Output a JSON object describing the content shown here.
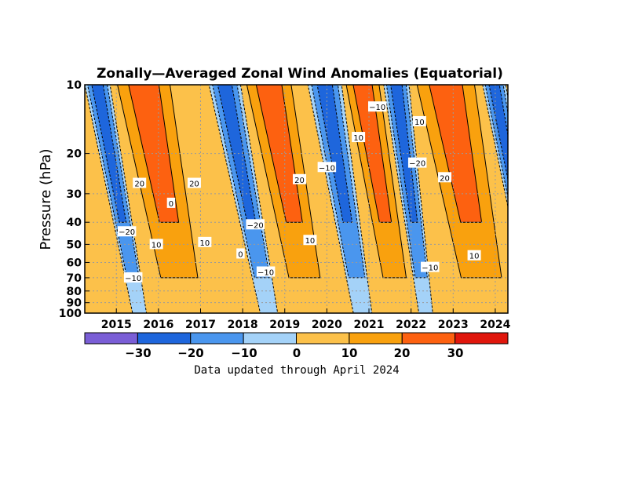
{
  "chart_data": {
    "type": "heatmap",
    "title": "Zonally—Averaged Zonal Wind Anomalies (Equatorial)",
    "xlabel": "",
    "ylabel": "Pressure (hPa)",
    "y_scale": "log",
    "y_reversed": true,
    "ylim": [
      100,
      10
    ],
    "xlim": [
      2014.25,
      2024.3
    ],
    "x_ticks": [
      {
        "label": "2015",
        "value": 2015.0
      },
      {
        "label": "2016",
        "value": 2016.0
      },
      {
        "label": "2017",
        "value": 2017.0
      },
      {
        "label": "2018",
        "value": 2018.0
      },
      {
        "label": "2019",
        "value": 2019.0
      },
      {
        "label": "2020",
        "value": 2020.0
      },
      {
        "label": "2021",
        "value": 2021.0
      },
      {
        "label": "2022",
        "value": 2022.0
      },
      {
        "label": "2023",
        "value": 2023.0
      },
      {
        "label": "2024",
        "value": 2024.0
      }
    ],
    "y_ticks": [
      {
        "label": "10",
        "value": 10
      },
      {
        "label": "20",
        "value": 20
      },
      {
        "label": "30",
        "value": 30
      },
      {
        "label": "40",
        "value": 40
      },
      {
        "label": "50",
        "value": 50
      },
      {
        "label": "60",
        "value": 60
      },
      {
        "label": "70",
        "value": 70
      },
      {
        "label": "80",
        "value": 80
      },
      {
        "label": "90",
        "value": 90
      },
      {
        "label": "100",
        "value": 100
      }
    ],
    "grid": true,
    "colorbar": {
      "levels": [
        -40,
        -30,
        -20,
        -10,
        0,
        10,
        20,
        30,
        40
      ],
      "tick_labels": [
        {
          "label": "−30",
          "value": -30
        },
        {
          "label": "−20",
          "value": -20
        },
        {
          "label": "−10",
          "value": -10
        },
        {
          "label": "0",
          "value": 0
        },
        {
          "label": "10",
          "value": 10
        },
        {
          "label": "20",
          "value": 20
        },
        {
          "label": "30",
          "value": 30
        }
      ],
      "colors": [
        "#7a5ed6",
        "#1e66dc",
        "#4a96ee",
        "#a4d2f8",
        "#fcc14a",
        "#f9a10e",
        "#fd6110",
        "#e0160c"
      ]
    },
    "easterly_phases": [
      {
        "top_start": 2014.25,
        "top_end": 2014.85,
        "slope": 1.0
      },
      {
        "top_start": 2017.2,
        "top_end": 2017.95,
        "slope": 1.05
      },
      {
        "top_start": 2019.55,
        "top_end": 2020.35,
        "slope": 0.9
      },
      {
        "top_start": 2021.35,
        "top_end": 2021.95,
        "slope": 0.7
      },
      {
        "top_start": 2023.7,
        "top_end": 2024.25,
        "slope": 1.0
      }
    ],
    "westerly_phases": [
      {
        "top_start": 2014.85,
        "top_end": 2016.45,
        "slope": 1.0
      },
      {
        "top_start": 2017.95,
        "top_end": 2019.3,
        "slope": 1.0
      },
      {
        "top_start": 2020.35,
        "top_end": 2021.35,
        "slope": 0.9
      },
      {
        "top_start": 2021.95,
        "top_end": 2023.7,
        "slope": 1.0
      }
    ],
    "contour_labels": [
      {
        "text": "20",
        "x": 2015.55,
        "p": 27
      },
      {
        "text": "−20",
        "x": 2015.25,
        "p": 44
      },
      {
        "text": "10",
        "x": 2015.95,
        "p": 50
      },
      {
        "text": "−10",
        "x": 2015.4,
        "p": 70
      },
      {
        "text": "0",
        "x": 2016.3,
        "p": 33
      },
      {
        "text": "20",
        "x": 2016.85,
        "p": 27
      },
      {
        "text": "10",
        "x": 2017.1,
        "p": 49
      },
      {
        "text": "0",
        "x": 2017.95,
        "p": 55
      },
      {
        "text": "−20",
        "x": 2018.3,
        "p": 41
      },
      {
        "text": "−10",
        "x": 2018.55,
        "p": 66
      },
      {
        "text": "20",
        "x": 2019.35,
        "p": 26
      },
      {
        "text": "10",
        "x": 2019.6,
        "p": 48
      },
      {
        "text": "−10",
        "x": 2020.0,
        "p": 23
      },
      {
        "text": "10",
        "x": 2020.75,
        "p": 17
      },
      {
        "text": "−10",
        "x": 2021.2,
        "p": 12.5
      },
      {
        "text": "−20",
        "x": 2022.15,
        "p": 22
      },
      {
        "text": "10",
        "x": 2022.2,
        "p": 14.5
      },
      {
        "text": "20",
        "x": 2022.8,
        "p": 25.5
      },
      {
        "text": "−10",
        "x": 2022.45,
        "p": 63
      },
      {
        "text": "10",
        "x": 2023.5,
        "p": 56
      }
    ]
  },
  "colorbar_labels": {
    "m30": "−30",
    "m20": "−20",
    "m10": "−10",
    "z": "0",
    "p10": "10",
    "p20": "20",
    "p30": "30"
  },
  "note": "Data updated through April 2024"
}
